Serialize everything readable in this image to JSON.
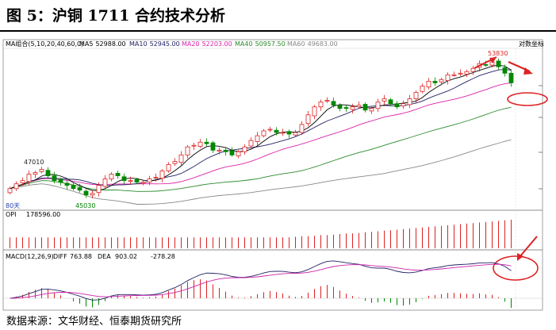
{
  "title": "图 5：沪铜 1711 合约技术分析",
  "source": "数据来源：文华财经、恒泰期货研究所",
  "chart_data": {
    "type": "candlestick",
    "price_panel": {
      "ma_header": "MA组合(5,10,20,40,60,0)",
      "ma_labels": [
        {
          "label": "MA5",
          "value": "52988.00",
          "color": "#000000"
        },
        {
          "label": "MA10",
          "value": "52945.00",
          "color": "#222266"
        },
        {
          "label": "MA20",
          "value": "52203.00",
          "color": "#dd22aa"
        },
        {
          "label": "MA40",
          "value": "50957.50",
          "color": "#2a8a2a"
        },
        {
          "label": "MA60",
          "value": "49683.00",
          "color": "#888888"
        }
      ],
      "corner_label": "对数坐标",
      "period_label": "80天",
      "annotations": [
        {
          "text": "47010",
          "color": "#222222"
        },
        {
          "text": "45030",
          "color": "#008800"
        },
        {
          "text": "53830",
          "color": "#dd2222"
        }
      ],
      "ylim": [
        44600,
        54400
      ],
      "closes": [
        45800,
        46100,
        46300,
        46700,
        46800,
        47000,
        46600,
        46300,
        46200,
        46000,
        45800,
        45700,
        45400,
        45500,
        46000,
        46400,
        46700,
        46600,
        46300,
        46300,
        46200,
        46200,
        46400,
        46500,
        46900,
        47300,
        47500,
        47900,
        48400,
        48500,
        48700,
        48600,
        48200,
        48200,
        48100,
        47900,
        48100,
        48400,
        48800,
        49100,
        49400,
        49500,
        49300,
        49300,
        49200,
        49300,
        49800,
        50400,
        50900,
        51200,
        51300,
        51000,
        50800,
        50800,
        50900,
        51000,
        50700,
        50800,
        51200,
        51400,
        51100,
        50900,
        51100,
        51400,
        51800,
        52200,
        52500,
        52400,
        52600,
        52900,
        52900,
        53000,
        53100,
        53300,
        53600,
        53500,
        53700,
        53400,
        53000,
        52400
      ]
    },
    "opi_panel": {
      "label": "OPI",
      "value": "178596.00",
      "values": [
        20,
        20,
        20,
        20,
        20,
        20,
        20,
        20,
        20,
        20,
        20,
        20,
        20,
        20,
        20,
        20,
        20,
        20,
        20,
        20,
        20,
        20,
        20,
        20,
        20,
        20,
        20,
        20,
        20,
        20,
        20,
        20,
        20,
        20,
        20,
        20,
        20,
        20,
        20,
        20,
        20,
        20,
        20,
        20,
        20,
        21,
        22,
        22,
        23,
        24,
        24,
        25,
        26,
        27,
        27,
        28,
        29,
        30,
        31,
        32,
        33,
        34,
        35,
        36,
        37,
        38,
        39,
        40,
        41,
        42,
        43,
        44,
        45,
        46,
        47,
        48,
        49,
        50,
        51,
        52
      ]
    },
    "macd_panel": {
      "header": "MACD(12,26,9)",
      "diff_label": "DIFF",
      "diff_value": "763.88",
      "dea_label": "DEA",
      "dea_value": "903.02",
      "macd_value": "-278.28",
      "ylim": [
        -260,
        920
      ]
    },
    "colors": {
      "up": "#dd2222",
      "down": "#008800",
      "background": "#ffffff"
    }
  }
}
